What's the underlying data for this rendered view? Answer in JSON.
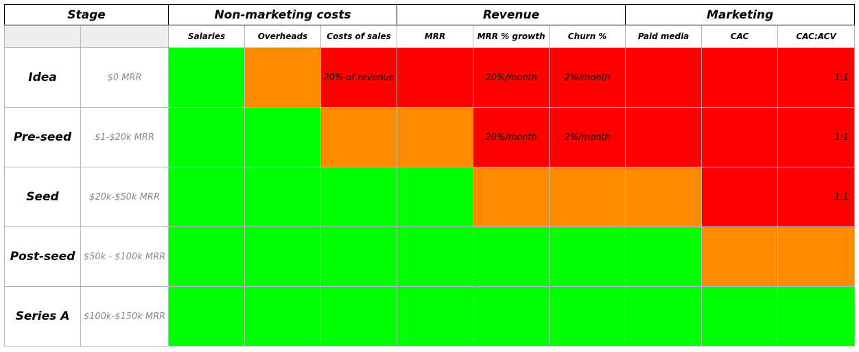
{
  "colors": {
    "green": "#00ff00",
    "orange": "#ff8c00",
    "red": "#ff0000"
  },
  "header": {
    "stage": "Stage",
    "non_marketing": "Non-marketing costs",
    "revenue": "Revenue",
    "marketing": "Marketing"
  },
  "columns": [
    "Salaries",
    "Overheads",
    "Costs of sales",
    "MRR",
    "MRR % growth",
    "Churn %",
    "Paid media",
    "CAC",
    "CAC:ACV"
  ],
  "rows": [
    {
      "stage": "Idea",
      "mrr": "$0 MRR",
      "cells": [
        {
          "color": "green",
          "text": ""
        },
        {
          "color": "orange",
          "text": ""
        },
        {
          "color": "red",
          "text": "20% of revenue"
        },
        {
          "color": "red",
          "text": ""
        },
        {
          "color": "red",
          "text": "20%/month"
        },
        {
          "color": "red",
          "text": "2%/month"
        },
        {
          "color": "red",
          "text": ""
        },
        {
          "color": "red",
          "text": ""
        },
        {
          "color": "red",
          "text": "1:1"
        }
      ]
    },
    {
      "stage": "Pre-seed",
      "mrr": "$1-$20k MRR",
      "cells": [
        {
          "color": "green",
          "text": ""
        },
        {
          "color": "green",
          "text": ""
        },
        {
          "color": "orange",
          "text": ""
        },
        {
          "color": "orange",
          "text": ""
        },
        {
          "color": "red",
          "text": "20%/month"
        },
        {
          "color": "red",
          "text": "2%/month"
        },
        {
          "color": "red",
          "text": ""
        },
        {
          "color": "red",
          "text": ""
        },
        {
          "color": "red",
          "text": "1:1"
        }
      ]
    },
    {
      "stage": "Seed",
      "mrr": "$20k-$50k MRR",
      "cells": [
        {
          "color": "green",
          "text": ""
        },
        {
          "color": "green",
          "text": ""
        },
        {
          "color": "green",
          "text": ""
        },
        {
          "color": "green",
          "text": ""
        },
        {
          "color": "orange",
          "text": ""
        },
        {
          "color": "orange",
          "text": ""
        },
        {
          "color": "orange",
          "text": ""
        },
        {
          "color": "red",
          "text": ""
        },
        {
          "color": "red",
          "text": "1:1"
        }
      ]
    },
    {
      "stage": "Post-seed",
      "mrr": "$50k - $100k MRR",
      "cells": [
        {
          "color": "green",
          "text": ""
        },
        {
          "color": "green",
          "text": ""
        },
        {
          "color": "green",
          "text": ""
        },
        {
          "color": "green",
          "text": ""
        },
        {
          "color": "green",
          "text": ""
        },
        {
          "color": "green",
          "text": ""
        },
        {
          "color": "green",
          "text": ""
        },
        {
          "color": "orange",
          "text": ""
        },
        {
          "color": "orange",
          "text": ""
        }
      ]
    },
    {
      "stage": "Series A",
      "mrr": "$100k-$150k MRR",
      "cells": [
        {
          "color": "green",
          "text": ""
        },
        {
          "color": "green",
          "text": ""
        },
        {
          "color": "green",
          "text": ""
        },
        {
          "color": "green",
          "text": ""
        },
        {
          "color": "green",
          "text": ""
        },
        {
          "color": "green",
          "text": ""
        },
        {
          "color": "green",
          "text": ""
        },
        {
          "color": "green",
          "text": ""
        },
        {
          "color": "green",
          "text": ""
        }
      ]
    }
  ]
}
